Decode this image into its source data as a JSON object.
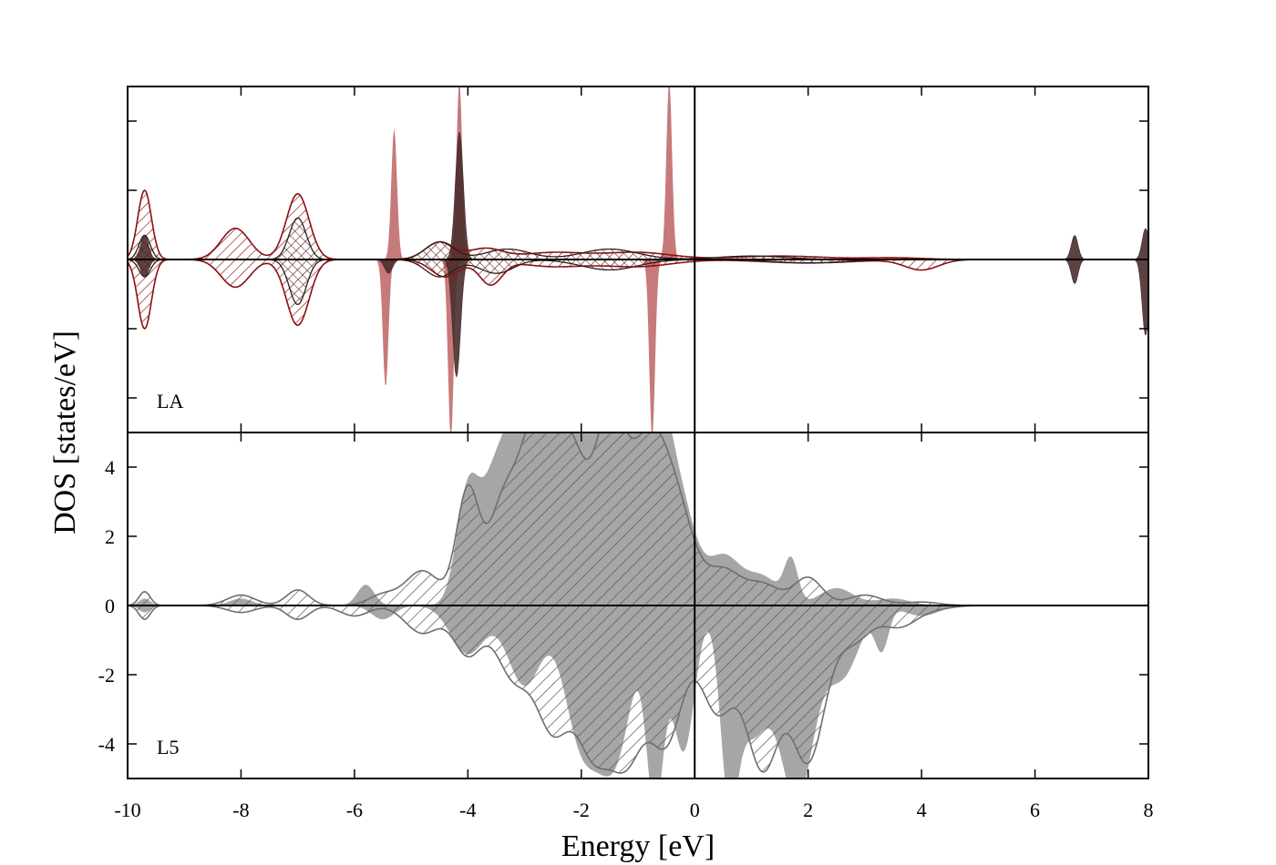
{
  "figure": {
    "ylabel": "DOS [states/eV]",
    "xlabel": "Energy [eV]"
  },
  "chart_data": {
    "type": "area",
    "xlabel": "Energy [eV]",
    "ylabel": "DOS [states/eV]",
    "xlim": [
      -10,
      8
    ],
    "xticks": [
      "-10",
      "-8",
      "-6",
      "-4",
      "-2",
      "0",
      "2",
      "4",
      "6",
      "8"
    ],
    "fermi_level": 0,
    "colors": {
      "la_red_fill": "#c47373",
      "la_red_line": "#8b1010",
      "la_dark_fill": "#4a2e2e",
      "l5_fill": "#a6a6a6",
      "l5_line": "#6e6e6e",
      "axis": "#000000"
    },
    "panels": [
      {
        "label": "LA",
        "ylim": [
          -5,
          5
        ],
        "yticks_shown": false,
        "grid": false,
        "series": [
          {
            "style": "red-solid-fill",
            "peaks": [
              [
                -5.3,
                3.8,
                0.05
              ],
              [
                -4.15,
                5.2,
                0.05
              ],
              [
                -0.45,
                5.2,
                0.05
              ]
            ],
            "peaks_down": [
              [
                -5.45,
                3.7,
                0.05
              ],
              [
                -4.3,
                5.2,
                0.05
              ],
              [
                -0.75,
                5.2,
                0.05
              ]
            ]
          },
          {
            "style": "dark-solid-fill",
            "peaks": [
              [
                -9.7,
                0.7,
                0.07
              ],
              [
                -4.15,
                3.7,
                0.07
              ],
              [
                6.7,
                0.7,
                0.06
              ],
              [
                7.95,
                0.9,
                0.06
              ]
            ],
            "peaks_down": [
              [
                -9.7,
                0.5,
                0.07
              ],
              [
                -5.4,
                0.4,
                0.07
              ],
              [
                -4.2,
                3.4,
                0.07
              ],
              [
                6.7,
                0.7,
                0.06
              ],
              [
                7.95,
                2.2,
                0.06
              ]
            ]
          },
          {
            "style": "red-hatched-outline",
            "peaks": [
              [
                -9.7,
                2.0,
                0.12
              ],
              [
                -8.1,
                0.9,
                0.25
              ],
              [
                -7.0,
                1.9,
                0.2
              ],
              [
                -4.5,
                0.5,
                0.25
              ],
              [
                -3.7,
                0.3,
                0.3
              ],
              [
                -2.5,
                0.2,
                0.6
              ],
              [
                -1.0,
                0.2,
                0.6
              ],
              [
                1.5,
                0.1,
                0.8
              ],
              [
                3.5,
                0.05,
                0.5
              ]
            ],
            "peaks_down": [
              [
                -9.7,
                2.0,
                0.12
              ],
              [
                -8.1,
                0.8,
                0.25
              ],
              [
                -7.0,
                1.9,
                0.2
              ],
              [
                -4.4,
                0.5,
                0.25
              ],
              [
                -3.6,
                0.7,
                0.2
              ],
              [
                -2.5,
                0.2,
                0.6
              ],
              [
                -1.0,
                0.2,
                0.6
              ],
              [
                2.0,
                0.1,
                0.8
              ],
              [
                4.0,
                0.3,
                0.3
              ]
            ]
          },
          {
            "style": "dark-hatched-outline",
            "peaks": [
              [
                -9.7,
                0.7,
                0.1
              ],
              [
                -7.0,
                1.2,
                0.15
              ],
              [
                -4.5,
                0.5,
                0.25
              ],
              [
                -3.3,
                0.3,
                0.4
              ],
              [
                -1.5,
                0.3,
                0.5
              ],
              [
                1.0,
                0.1,
                0.6
              ]
            ],
            "peaks_down": [
              [
                -9.7,
                0.5,
                0.1
              ],
              [
                -7.0,
                1.3,
                0.15
              ],
              [
                -4.5,
                0.5,
                0.25
              ],
              [
                -3.5,
                0.4,
                0.3
              ],
              [
                -1.5,
                0.3,
                0.5
              ],
              [
                2.0,
                0.1,
                0.6
              ]
            ]
          }
        ]
      },
      {
        "label": "L5",
        "ylim": [
          -5,
          5
        ],
        "yticks": [
          "-4",
          "-2",
          "0",
          "2",
          "4"
        ],
        "grid": false,
        "series": [
          {
            "style": "grey-solid-fill",
            "peaks": [
              [
                -9.7,
                0.2,
                0.1
              ],
              [
                -8.0,
                0.2,
                0.2
              ],
              [
                -5.8,
                0.6,
                0.15
              ],
              [
                -4.0,
                3.2,
                0.2
              ],
              [
                -3.5,
                3.6,
                0.25
              ],
              [
                -3.0,
                5.6,
                0.25
              ],
              [
                -2.5,
                5.4,
                0.25
              ],
              [
                -2.0,
                5.6,
                0.2
              ],
              [
                -1.6,
                6.0,
                0.3
              ],
              [
                -1.0,
                5.6,
                0.3
              ],
              [
                -0.6,
                3.6,
                0.25
              ],
              [
                -0.2,
                2.2,
                0.25
              ],
              [
                0.5,
                1.4,
                0.3
              ],
              [
                1.7,
                1.2,
                0.12
              ],
              [
                1.2,
                0.8,
                0.3
              ],
              [
                2.5,
                0.5,
                0.3
              ],
              [
                3.5,
                0.2,
                0.3
              ]
            ],
            "peaks_down": [
              [
                -9.7,
                0.2,
                0.1
              ],
              [
                -5.5,
                0.4,
                0.2
              ],
              [
                -4.0,
                1.4,
                0.3
              ],
              [
                -3.0,
                2.3,
                0.3
              ],
              [
                -2.0,
                3.8,
                0.3
              ],
              [
                -1.4,
                4.2,
                0.3
              ],
              [
                -0.7,
                5.5,
                0.15
              ],
              [
                -0.2,
                4.2,
                0.2
              ],
              [
                0.6,
                4.4,
                0.15
              ],
              [
                1.0,
                3.6,
                0.3
              ],
              [
                1.8,
                5.5,
                0.3
              ],
              [
                2.6,
                2.0,
                0.3
              ],
              [
                3.3,
                1.2,
                0.12
              ],
              [
                4.0,
                0.3,
                0.3
              ]
            ]
          },
          {
            "style": "grey-hatched-outline",
            "peaks": [
              [
                -9.7,
                0.4,
                0.1
              ],
              [
                -8.0,
                0.3,
                0.25
              ],
              [
                -7.0,
                0.45,
                0.2
              ],
              [
                -5.5,
                0.3,
                0.25
              ],
              [
                -4.8,
                1.0,
                0.3
              ],
              [
                -4.0,
                3.3,
                0.2
              ],
              [
                -3.4,
                2.6,
                0.25
              ],
              [
                -2.8,
                5.2,
                0.3
              ],
              [
                -2.2,
                4.0,
                0.25
              ],
              [
                -1.5,
                5.4,
                0.3
              ],
              [
                -0.8,
                4.2,
                0.3
              ],
              [
                -0.3,
                2.5,
                0.3
              ],
              [
                0.5,
                1.0,
                0.3
              ],
              [
                1.2,
                0.6,
                0.3
              ],
              [
                2.0,
                0.8,
                0.25
              ],
              [
                3.0,
                0.3,
                0.3
              ],
              [
                4.0,
                0.1,
                0.3
              ]
            ],
            "peaks_down": [
              [
                -9.7,
                0.4,
                0.1
              ],
              [
                -8.0,
                0.2,
                0.25
              ],
              [
                -7.0,
                0.4,
                0.2
              ],
              [
                -6.0,
                0.3,
                0.25
              ],
              [
                -4.8,
                0.8,
                0.3
              ],
              [
                -4.0,
                1.4,
                0.25
              ],
              [
                -3.2,
                2.0,
                0.3
              ],
              [
                -2.5,
                3.4,
                0.3
              ],
              [
                -1.8,
                3.8,
                0.3
              ],
              [
                -1.2,
                4.0,
                0.3
              ],
              [
                -0.5,
                3.8,
                0.3
              ],
              [
                0.4,
                3.0,
                0.3
              ],
              [
                1.2,
                4.6,
                0.3
              ],
              [
                2.0,
                4.4,
                0.3
              ],
              [
                2.8,
                1.0,
                0.3
              ],
              [
                3.6,
                0.6,
                0.3
              ],
              [
                4.2,
                0.1,
                0.3
              ]
            ]
          }
        ]
      }
    ]
  }
}
